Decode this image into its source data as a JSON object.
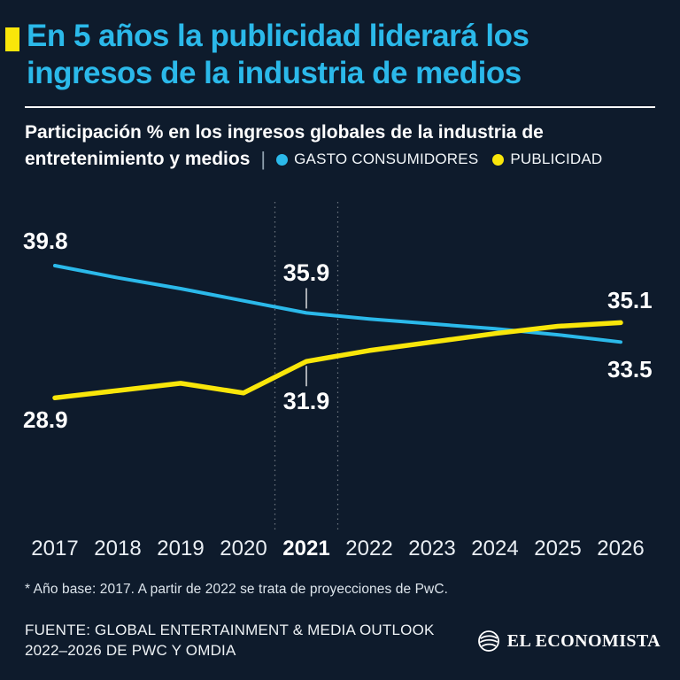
{
  "page": {
    "bg": "#0e1b2c",
    "accent_cyan": "#2bb9ea",
    "accent_yellow": "#f9e60a"
  },
  "header": {
    "title_line1": "En 5 años la publicidad liderará los",
    "title_line2": "ingresos de la industria de medios"
  },
  "subtitle": {
    "line1": "Participación % en los ingresos globales de la industria de",
    "line2": "entretenimiento y medios",
    "separator": "|",
    "legend": [
      {
        "label": "GASTO CONSUMIDORES",
        "color": "#2bb9ea"
      },
      {
        "label": "PUBLICIDAD",
        "color": "#f9e60a"
      }
    ]
  },
  "chart_data": {
    "type": "line",
    "title": "Participación % en los ingresos globales de la industria de entretenimiento y medios",
    "xlabel": "",
    "ylabel": "",
    "x": [
      2017,
      2018,
      2019,
      2020,
      2021,
      2022,
      2023,
      2024,
      2025,
      2026
    ],
    "series": [
      {
        "name": "GASTO CONSUMIDORES",
        "color": "#2bb9ea",
        "values": [
          39.8,
          38.8,
          37.9,
          36.9,
          35.9,
          35.4,
          35.0,
          34.6,
          34.1,
          33.5
        ]
      },
      {
        "name": "PUBLICIDAD",
        "color": "#f9e60a",
        "values": [
          28.9,
          29.5,
          30.1,
          29.3,
          31.9,
          32.8,
          33.5,
          34.2,
          34.8,
          35.1
        ]
      }
    ],
    "ylim": [
      26,
      42
    ],
    "grid": false,
    "legend_position": "top",
    "highlight_year": 2021,
    "labels": {
      "consumer_start": "39.8",
      "consumer_mid": "35.9",
      "consumer_end": "33.5",
      "ads_start": "28.9",
      "ads_mid": "31.9",
      "ads_end": "35.1"
    }
  },
  "footnote": "* Año base: 2017. A partir de 2022 se trata de proyecciones de PwC.",
  "source": {
    "line1": "FUENTE: GLOBAL ENTERTAINMENT & MEDIA OUTLOOK",
    "line2": "2022–2026 DE PWC Y OMDIA"
  },
  "logo": {
    "icon": "el-economista-circle-icon",
    "text": "EL ECONOMISTA"
  }
}
